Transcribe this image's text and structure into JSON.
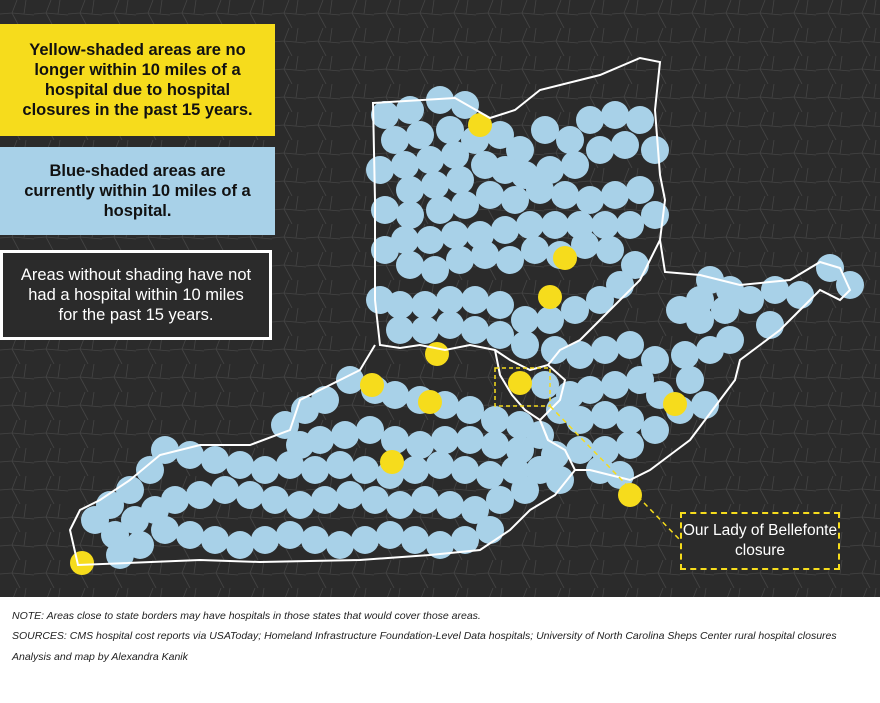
{
  "legend": {
    "yellow_text": "Yellow-shaded areas are no longer within 10 miles of a hospital due to hospital closures in the past 15 years.",
    "blue_text": "Blue-shaded areas are currently within 10 miles of a hospital.",
    "none_text": "Areas without shading have not had a hospital within 10 miles for the past 15 years."
  },
  "callout": {
    "label": "Our Lady of Bellefonte closure"
  },
  "footer": {
    "note": "NOTE: Areas close to state borders may have hospitals in those states that would cover those areas.",
    "sources": "SOURCES: CMS hospital cost reports via USAToday; Homeland Infrastructure Foundation-Level Data hospitals; University of North Carolina Sheps Center rural hospital closures",
    "credit": "Analysis and map by Alexandra Kanik"
  },
  "colors": {
    "background": "#2b2b2b",
    "covered": "#a8d1e8",
    "closed": "#f6dc1c",
    "border": "#ffffff"
  }
}
